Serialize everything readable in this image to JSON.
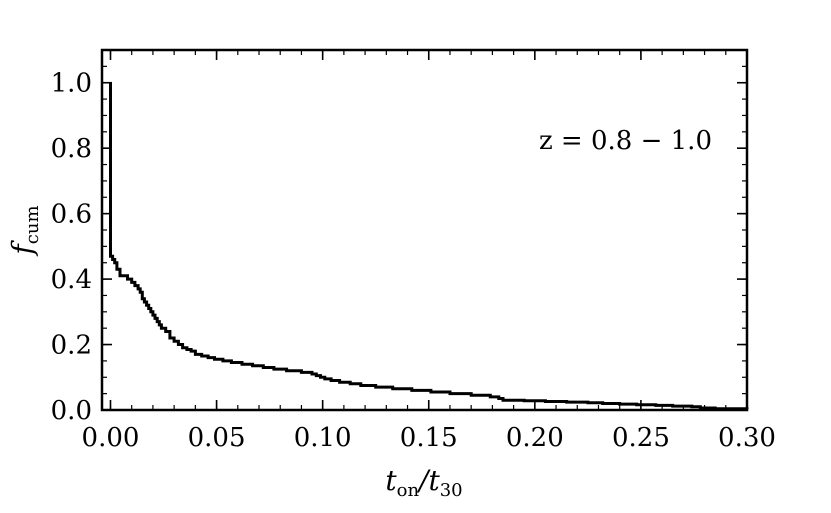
{
  "chart_data": {
    "type": "line",
    "step": true,
    "annotation": "z = 0.8 − 1.0",
    "xlabel": {
      "main": "t",
      "sub1": "on",
      "sep": "/t",
      "sub2": "30"
    },
    "ylabel": {
      "main": "f",
      "sub": "cum"
    },
    "xlim": [
      -0.004,
      0.3
    ],
    "ylim": [
      0.0,
      1.1
    ],
    "x_ticks": [
      0.0,
      0.05,
      0.1,
      0.15,
      0.2,
      0.25,
      0.3
    ],
    "x_tick_labels": [
      "0.00",
      "0.05",
      "0.10",
      "0.15",
      "0.20",
      "0.25",
      "0.30"
    ],
    "y_ticks": [
      0.0,
      0.2,
      0.4,
      0.6,
      0.8,
      1.0
    ],
    "y_tick_labels": [
      "0.0",
      "0.2",
      "0.4",
      "0.6",
      "0.8",
      "1.0"
    ],
    "x_minor_step": 0.01,
    "y_minor_step": 0.05,
    "series": [
      {
        "color": "#000000",
        "x": [
          0.0,
          0.0,
          0.001,
          0.002,
          0.003,
          0.0045,
          0.006,
          0.008,
          0.01,
          0.0115,
          0.013,
          0.014,
          0.015,
          0.016,
          0.017,
          0.018,
          0.019,
          0.02,
          0.021,
          0.022,
          0.023,
          0.024,
          0.026,
          0.028,
          0.03,
          0.032,
          0.034,
          0.036,
          0.038,
          0.04,
          0.043,
          0.046,
          0.049,
          0.053,
          0.057,
          0.062,
          0.067,
          0.072,
          0.077,
          0.083,
          0.09,
          0.095,
          0.097,
          0.099,
          0.101,
          0.104,
          0.108,
          0.113,
          0.118,
          0.125,
          0.133,
          0.142,
          0.151,
          0.16,
          0.17,
          0.179,
          0.183,
          0.185,
          0.195,
          0.205,
          0.215,
          0.225,
          0.232,
          0.24,
          0.248,
          0.257,
          0.265,
          0.274,
          0.278,
          0.285,
          0.3
        ],
        "y": [
          1.0,
          0.47,
          0.46,
          0.45,
          0.43,
          0.41,
          0.41,
          0.4,
          0.39,
          0.38,
          0.37,
          0.36,
          0.34,
          0.33,
          0.32,
          0.31,
          0.3,
          0.29,
          0.28,
          0.27,
          0.26,
          0.25,
          0.24,
          0.22,
          0.21,
          0.2,
          0.19,
          0.185,
          0.18,
          0.17,
          0.165,
          0.16,
          0.155,
          0.15,
          0.145,
          0.14,
          0.135,
          0.13,
          0.125,
          0.12,
          0.115,
          0.11,
          0.105,
          0.1,
          0.095,
          0.09,
          0.085,
          0.08,
          0.075,
          0.07,
          0.065,
          0.06,
          0.055,
          0.05,
          0.045,
          0.04,
          0.035,
          0.03,
          0.028,
          0.026,
          0.024,
          0.022,
          0.02,
          0.018,
          0.016,
          0.014,
          0.012,
          0.01,
          0.006,
          0.004,
          0.002
        ]
      }
    ]
  }
}
